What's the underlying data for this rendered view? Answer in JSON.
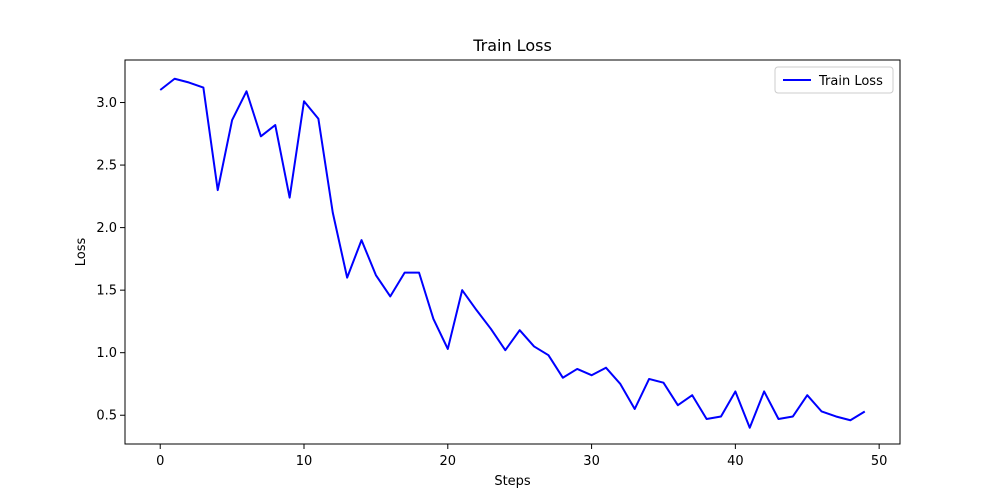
{
  "chart_data": {
    "type": "line",
    "title": "Train Loss",
    "xlabel": "Steps",
    "ylabel": "Loss",
    "xlim": [
      -2.45,
      51.45
    ],
    "ylim": [
      0.27,
      3.34
    ],
    "xticks": [
      0,
      10,
      20,
      30,
      40,
      50
    ],
    "yticks": [
      0.5,
      1.0,
      1.5,
      2.0,
      2.5,
      3.0
    ],
    "xtick_labels": [
      "0",
      "10",
      "20",
      "30",
      "40",
      "50"
    ],
    "ytick_labels": [
      "0.5",
      "1.0",
      "1.5",
      "2.0",
      "2.5",
      "3.0"
    ],
    "grid": false,
    "legend_position": "top-right",
    "series": [
      {
        "name": "Train Loss",
        "color": "#0000ff",
        "x": [
          0,
          1,
          2,
          3,
          4,
          5,
          6,
          7,
          8,
          9,
          10,
          11,
          12,
          13,
          14,
          15,
          16,
          17,
          18,
          19,
          20,
          21,
          22,
          23,
          24,
          25,
          26,
          27,
          28,
          29,
          30,
          31,
          32,
          33,
          34,
          35,
          36,
          37,
          38,
          39,
          40,
          41,
          42,
          43,
          44,
          45,
          46,
          47,
          48,
          49
        ],
        "y": [
          3.1,
          3.19,
          3.16,
          3.12,
          2.3,
          2.86,
          3.09,
          2.73,
          2.82,
          2.24,
          3.01,
          2.87,
          2.12,
          1.6,
          1.9,
          1.62,
          1.45,
          1.64,
          1.64,
          1.27,
          1.03,
          1.5,
          1.34,
          1.19,
          1.02,
          1.18,
          1.05,
          0.98,
          0.8,
          0.87,
          0.82,
          0.88,
          0.75,
          0.55,
          0.79,
          0.76,
          0.58,
          0.66,
          0.47,
          0.49,
          0.69,
          0.4,
          0.69,
          0.47,
          0.49,
          0.66,
          0.53,
          0.49,
          0.46,
          0.53
        ]
      }
    ]
  }
}
